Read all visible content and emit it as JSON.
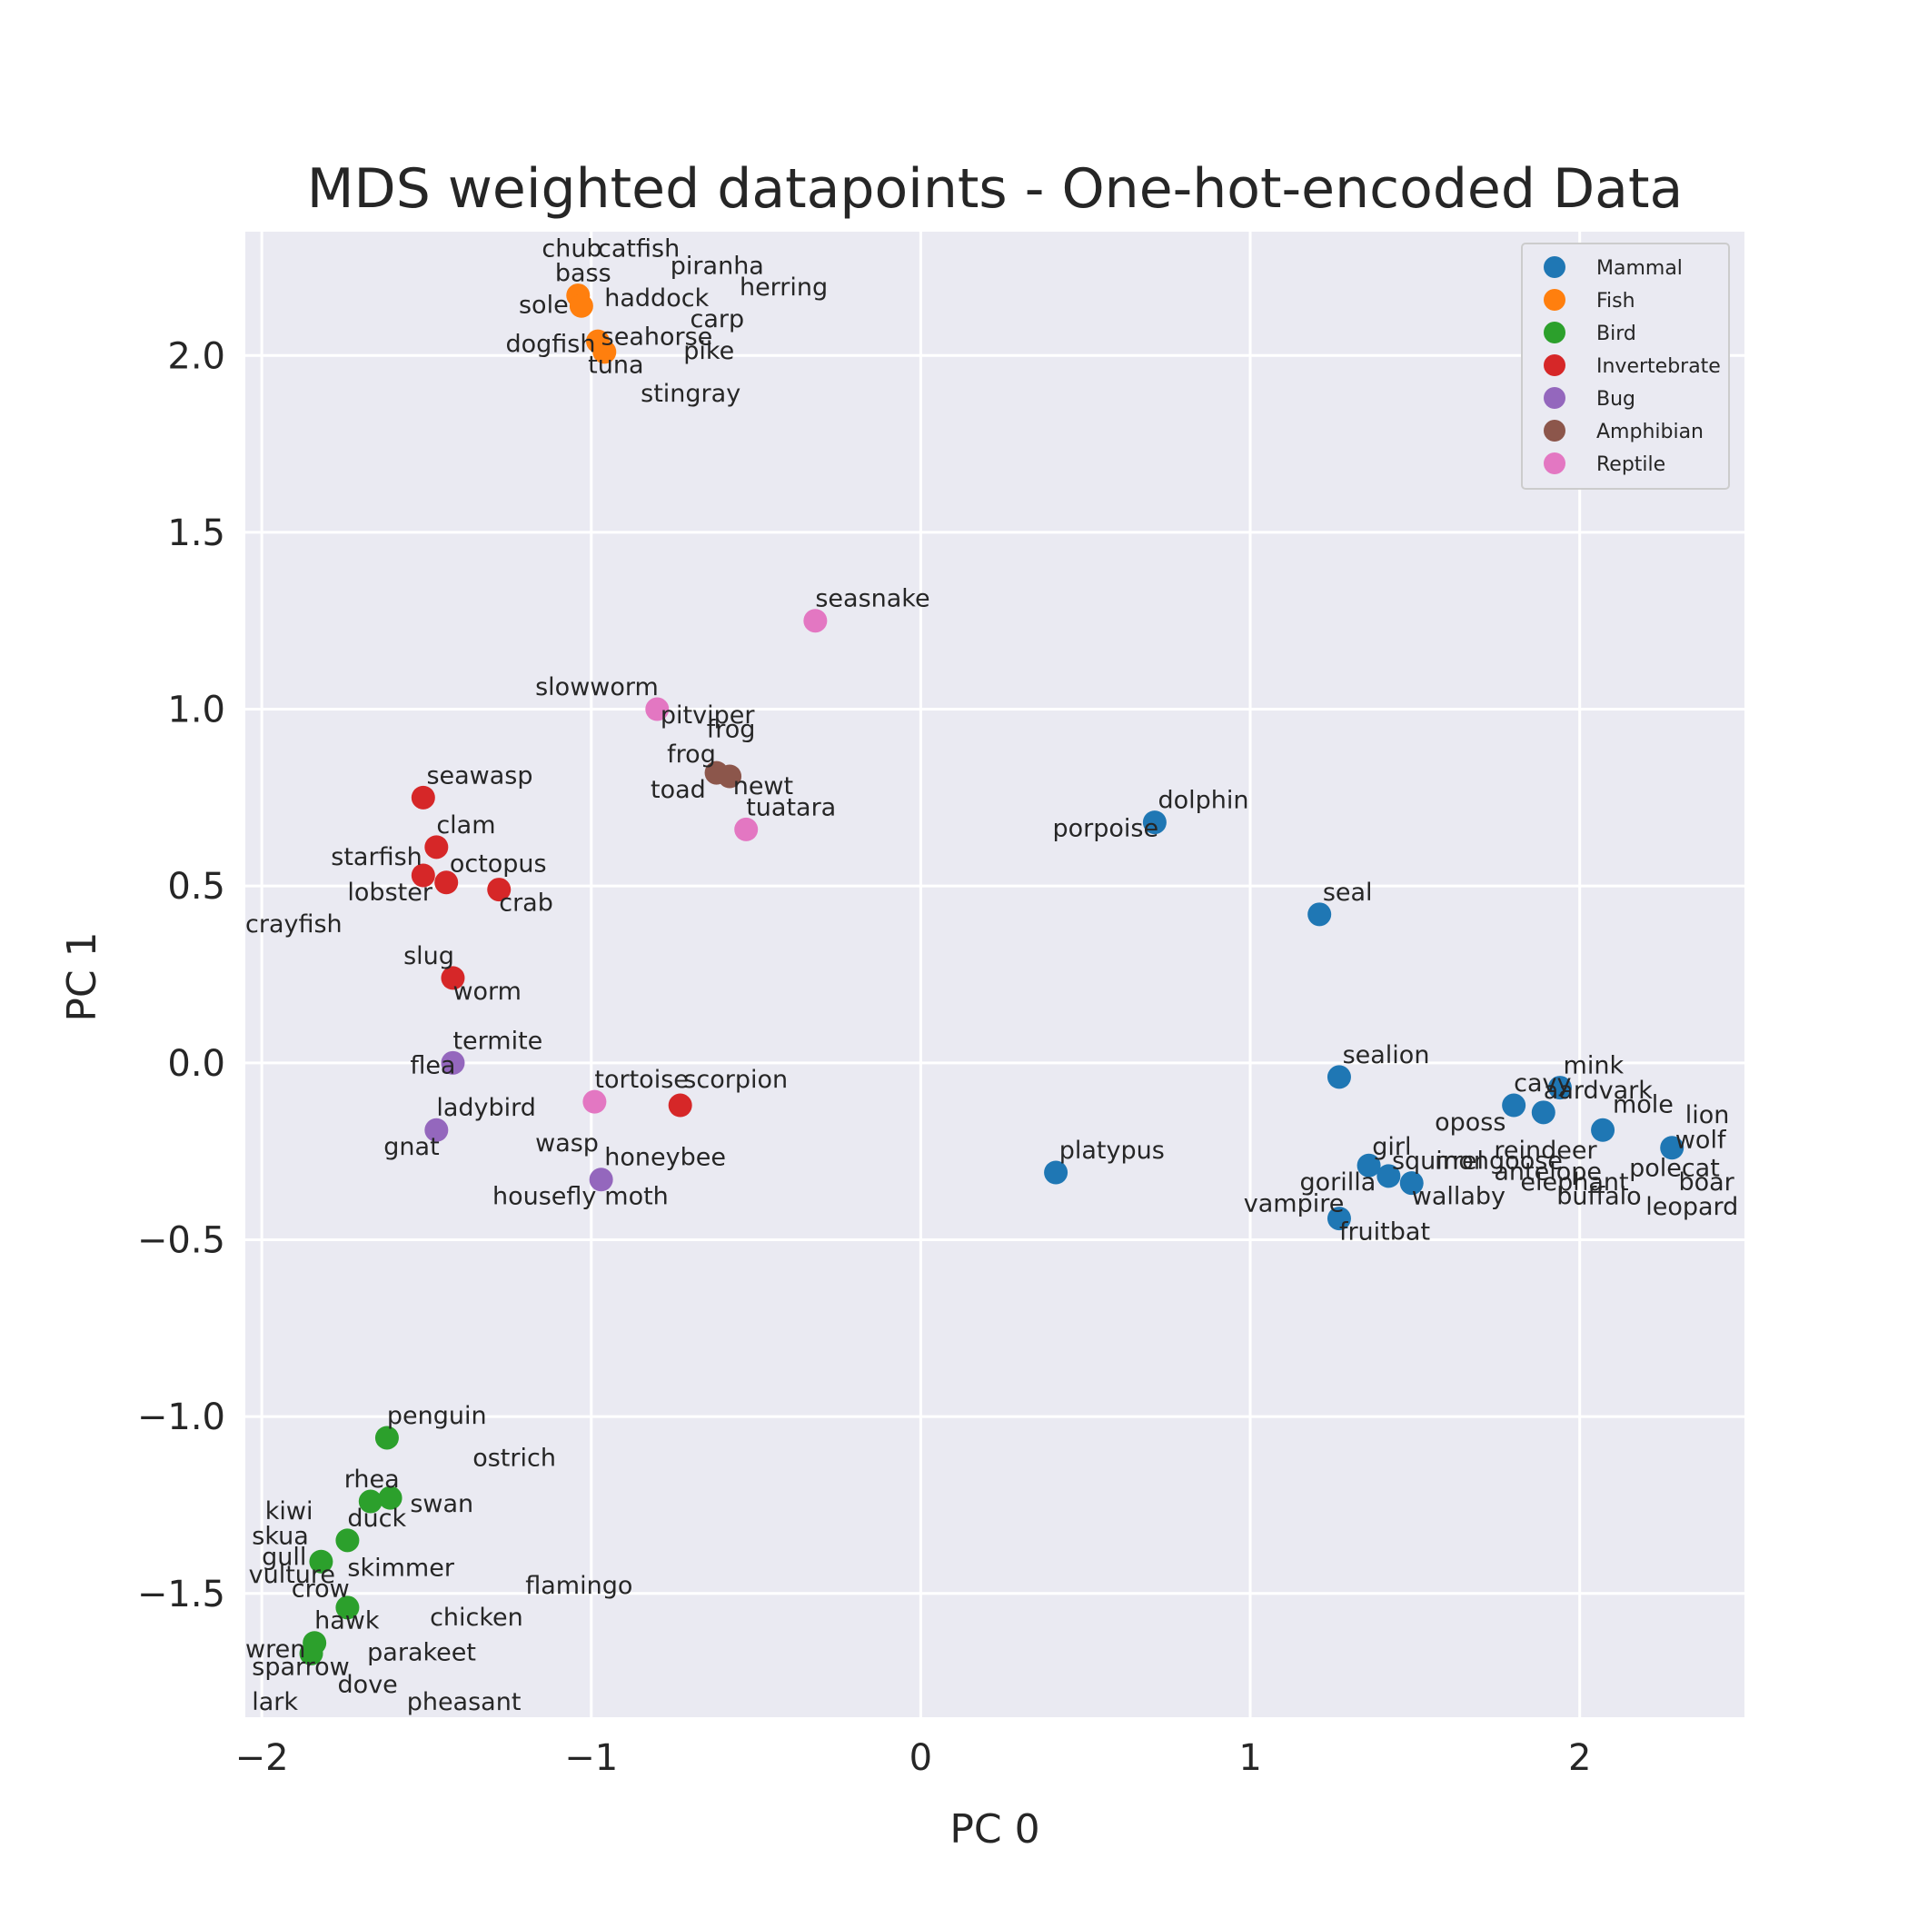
{
  "chart_data": {
    "type": "scatter",
    "title": "MDS weighted datapoints - One-hot-encoded Data",
    "xlabel": "PC 0",
    "ylabel": "PC 1",
    "xlim": [
      -2.05,
      2.5
    ],
    "ylim": [
      -1.85,
      2.35
    ],
    "xticks": [
      -2,
      -1,
      0,
      1,
      2
    ],
    "xtick_labels": [
      "−2",
      "−1",
      "0",
      "1",
      "2"
    ],
    "yticks": [
      -1.5,
      -1.0,
      -0.5,
      0.0,
      0.5,
      1.0,
      1.5,
      2.0
    ],
    "ytick_labels": [
      "−1.5",
      "−1.0",
      "−0.5",
      "0.0",
      "0.5",
      "1.0",
      "1.5",
      "2.0"
    ],
    "grid": true,
    "legend_position": "top-right",
    "series": [
      {
        "name": "Mammal",
        "color": "#1f77b4",
        "points": [
          {
            "x": 0.71,
            "y": 0.68
          },
          {
            "x": 1.21,
            "y": 0.42
          },
          {
            "x": 1.27,
            "y": -0.04
          },
          {
            "x": 0.41,
            "y": -0.31
          },
          {
            "x": 1.36,
            "y": -0.29
          },
          {
            "x": 1.42,
            "y": -0.32
          },
          {
            "x": 1.49,
            "y": -0.34
          },
          {
            "x": 1.27,
            "y": -0.44
          },
          {
            "x": 1.8,
            "y": -0.12
          },
          {
            "x": 1.89,
            "y": -0.14
          },
          {
            "x": 1.94,
            "y": -0.07
          },
          {
            "x": 2.07,
            "y": -0.19
          },
          {
            "x": 2.28,
            "y": -0.24
          }
        ]
      },
      {
        "name": "Fish",
        "color": "#ff7f0e",
        "points": [
          {
            "x": -1.04,
            "y": 2.17
          },
          {
            "x": -1.03,
            "y": 2.14
          },
          {
            "x": -0.98,
            "y": 2.04
          },
          {
            "x": -0.96,
            "y": 2.01
          }
        ]
      },
      {
        "name": "Bird",
        "color": "#2ca02c",
        "points": [
          {
            "x": -1.62,
            "y": -1.06
          },
          {
            "x": -1.67,
            "y": -1.24
          },
          {
            "x": -1.61,
            "y": -1.23
          },
          {
            "x": -1.74,
            "y": -1.35
          },
          {
            "x": -1.82,
            "y": -1.41
          },
          {
            "x": -1.74,
            "y": -1.54
          },
          {
            "x": -1.84,
            "y": -1.64
          },
          {
            "x": -1.85,
            "y": -1.67
          }
        ]
      },
      {
        "name": "Invertebrate",
        "color": "#d62728",
        "points": [
          {
            "x": -1.51,
            "y": 0.75
          },
          {
            "x": -1.47,
            "y": 0.61
          },
          {
            "x": -1.51,
            "y": 0.53
          },
          {
            "x": -1.44,
            "y": 0.51
          },
          {
            "x": -1.28,
            "y": 0.49
          },
          {
            "x": -1.42,
            "y": 0.24
          },
          {
            "x": -0.73,
            "y": -0.12
          }
        ]
      },
      {
        "name": "Bug",
        "color": "#9467bd",
        "points": [
          {
            "x": -1.42,
            "y": 0.0
          },
          {
            "x": -1.47,
            "y": -0.19
          },
          {
            "x": -0.97,
            "y": -0.33
          }
        ]
      },
      {
        "name": "Amphibian",
        "color": "#8c564b",
        "points": [
          {
            "x": -0.62,
            "y": 0.82
          },
          {
            "x": -0.58,
            "y": 0.81
          }
        ]
      },
      {
        "name": "Reptile",
        "color": "#e377c2",
        "points": [
          {
            "x": -0.32,
            "y": 1.25
          },
          {
            "x": -0.8,
            "y": 1.0
          },
          {
            "x": -0.53,
            "y": 0.66
          },
          {
            "x": -0.99,
            "y": -0.11
          }
        ]
      }
    ],
    "annotations": [
      {
        "text": "chub",
        "x": -1.15,
        "y": 2.28
      },
      {
        "text": "catfish",
        "x": -0.98,
        "y": 2.28
      },
      {
        "text": "bass",
        "x": -1.11,
        "y": 2.21
      },
      {
        "text": "piranha",
        "x": -0.76,
        "y": 2.23
      },
      {
        "text": "herring",
        "x": -0.55,
        "y": 2.17
      },
      {
        "text": "haddock",
        "x": -0.96,
        "y": 2.14
      },
      {
        "text": "sole",
        "x": -1.22,
        "y": 2.12
      },
      {
        "text": "carp",
        "x": -0.7,
        "y": 2.08
      },
      {
        "text": "seahorse",
        "x": -0.97,
        "y": 2.03
      },
      {
        "text": "dogfish",
        "x": -1.26,
        "y": 2.01
      },
      {
        "text": "pike",
        "x": -0.72,
        "y": 1.99
      },
      {
        "text": "tuna",
        "x": -1.01,
        "y": 1.95
      },
      {
        "text": "stingray",
        "x": -0.85,
        "y": 1.87
      },
      {
        "text": "seasnake",
        "x": -0.32,
        "y": 1.29
      },
      {
        "text": "slowworm",
        "x": -1.17,
        "y": 1.04
      },
      {
        "text": "pitviper",
        "x": -0.79,
        "y": 0.96
      },
      {
        "text": "frog",
        "x": -0.65,
        "y": 0.92
      },
      {
        "text": "frog",
        "x": -0.77,
        "y": 0.85
      },
      {
        "text": "newt",
        "x": -0.57,
        "y": 0.76
      },
      {
        "text": "toad",
        "x": -0.82,
        "y": 0.75
      },
      {
        "text": "tuatara",
        "x": -0.53,
        "y": 0.7
      },
      {
        "text": "dolphin",
        "x": 0.72,
        "y": 0.72
      },
      {
        "text": "porpoise",
        "x": 0.4,
        "y": 0.64
      },
      {
        "text": "seawasp",
        "x": -1.5,
        "y": 0.79
      },
      {
        "text": "clam",
        "x": -1.47,
        "y": 0.65
      },
      {
        "text": "starfish",
        "x": -1.79,
        "y": 0.56
      },
      {
        "text": "octopus",
        "x": -1.43,
        "y": 0.54
      },
      {
        "text": "lobster",
        "x": -1.74,
        "y": 0.46
      },
      {
        "text": "crab",
        "x": -1.28,
        "y": 0.43
      },
      {
        "text": "crayfish",
        "x": -2.05,
        "y": 0.37
      },
      {
        "text": "seal",
        "x": 1.22,
        "y": 0.46
      },
      {
        "text": "slug",
        "x": -1.57,
        "y": 0.28
      },
      {
        "text": "worm",
        "x": -1.42,
        "y": 0.18
      },
      {
        "text": "termite",
        "x": -1.42,
        "y": 0.04
      },
      {
        "text": "sealion",
        "x": 1.28,
        "y": 0.0
      },
      {
        "text": "flea",
        "x": -1.55,
        "y": -0.03
      },
      {
        "text": "tortoise",
        "x": -0.99,
        "y": -0.07
      },
      {
        "text": "scorpion",
        "x": -0.72,
        "y": -0.07
      },
      {
        "text": "mink",
        "x": 1.95,
        "y": -0.03
      },
      {
        "text": "cavy",
        "x": 1.8,
        "y": -0.08
      },
      {
        "text": "aardvark",
        "x": 1.89,
        "y": -0.1
      },
      {
        "text": "mole",
        "x": 2.1,
        "y": -0.14
      },
      {
        "text": "lion",
        "x": 2.32,
        "y": -0.17
      },
      {
        "text": "oposs",
        "x": 1.56,
        "y": -0.19
      },
      {
        "text": "ladybird",
        "x": -1.47,
        "y": -0.15
      },
      {
        "text": "platypus",
        "x": 0.42,
        "y": -0.27
      },
      {
        "text": "girl",
        "x": 1.37,
        "y": -0.26
      },
      {
        "text": "squirrel",
        "x": 1.43,
        "y": -0.3
      },
      {
        "text": "mongoose",
        "x": 1.56,
        "y": -0.3
      },
      {
        "text": "reindeer",
        "x": 1.74,
        "y": -0.27
      },
      {
        "text": "antelope",
        "x": 1.74,
        "y": -0.33
      },
      {
        "text": "elephant",
        "x": 1.82,
        "y": -0.36
      },
      {
        "text": "wolf",
        "x": 2.29,
        "y": -0.24
      },
      {
        "text": "polecat",
        "x": 2.15,
        "y": -0.32
      },
      {
        "text": "boar",
        "x": 2.3,
        "y": -0.36
      },
      {
        "text": "buffalo",
        "x": 1.93,
        "y": -0.4
      },
      {
        "text": "leopard",
        "x": 2.2,
        "y": -0.43
      },
      {
        "text": "wasp",
        "x": -1.17,
        "y": -0.25
      },
      {
        "text": "gnat",
        "x": -1.63,
        "y": -0.26
      },
      {
        "text": "honeybee",
        "x": -0.96,
        "y": -0.29
      },
      {
        "text": "gorilla",
        "x": 1.15,
        "y": -0.36
      },
      {
        "text": "wallaby",
        "x": 1.49,
        "y": -0.4
      },
      {
        "text": "housefly",
        "x": -1.3,
        "y": -0.4
      },
      {
        "text": "moth",
        "x": -0.96,
        "y": -0.4
      },
      {
        "text": "vampire",
        "x": 0.98,
        "y": -0.42
      },
      {
        "text": "fruitbat",
        "x": 1.27,
        "y": -0.5
      },
      {
        "text": "penguin",
        "x": -1.62,
        "y": -1.02
      },
      {
        "text": "ostrich",
        "x": -1.36,
        "y": -1.14
      },
      {
        "text": "rhea",
        "x": -1.75,
        "y": -1.2
      },
      {
        "text": "kiwi",
        "x": -1.99,
        "y": -1.29
      },
      {
        "text": "swan",
        "x": -1.55,
        "y": -1.27
      },
      {
        "text": "duck",
        "x": -1.74,
        "y": -1.31
      },
      {
        "text": "skua",
        "x": -2.03,
        "y": -1.36
      },
      {
        "text": "gull",
        "x": -2.0,
        "y": -1.42
      },
      {
        "text": "skimmer",
        "x": -1.74,
        "y": -1.45
      },
      {
        "text": "vulture",
        "x": -2.04,
        "y": -1.47
      },
      {
        "text": "flamingo",
        "x": -1.2,
        "y": -1.5
      },
      {
        "text": "crow",
        "x": -1.91,
        "y": -1.51
      },
      {
        "text": "chicken",
        "x": -1.49,
        "y": -1.59
      },
      {
        "text": "hawk",
        "x": -1.84,
        "y": -1.6
      },
      {
        "text": "wren",
        "x": -2.05,
        "y": -1.68
      },
      {
        "text": "parakeet",
        "x": -1.68,
        "y": -1.69
      },
      {
        "text": "sparrow",
        "x": -2.03,
        "y": -1.73
      },
      {
        "text": "dove",
        "x": -1.77,
        "y": -1.78
      },
      {
        "text": "lark",
        "x": -2.03,
        "y": -1.83
      },
      {
        "text": "pheasant",
        "x": -1.56,
        "y": -1.83
      }
    ]
  }
}
